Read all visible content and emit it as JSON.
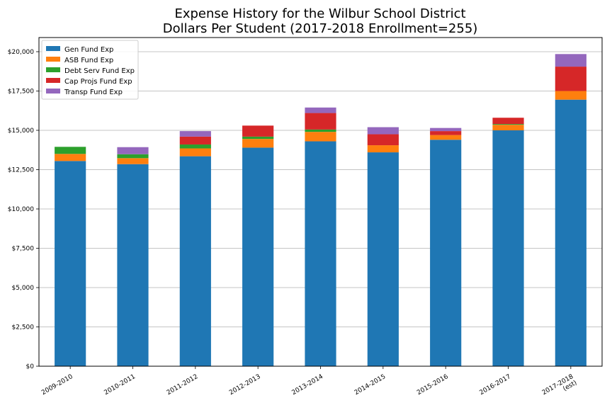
{
  "chart_data": {
    "type": "bar",
    "stacked": true,
    "title": "Expense History for the Wilbur School District",
    "subtitle": "Dollars Per Student (2017-2018 Enrollment=255)",
    "categories": [
      [
        "2009-2010"
      ],
      [
        "2010-2011"
      ],
      [
        "2011-2012"
      ],
      [
        "2012-2013"
      ],
      [
        "2013-2014"
      ],
      [
        "2014-2015"
      ],
      [
        "2015-2016"
      ],
      [
        "2016-2017"
      ],
      [
        "2017-2018",
        "(est)"
      ]
    ],
    "series": [
      {
        "name": "Gen Fund Exp",
        "color": "#1f77b4",
        "values": [
          13050,
          12850,
          13350,
          13900,
          14300,
          13600,
          14400,
          15000,
          16950
        ]
      },
      {
        "name": "ASB Fund Exp",
        "color": "#ff7f0e",
        "values": [
          450,
          380,
          500,
          550,
          600,
          450,
          300,
          350,
          550
        ]
      },
      {
        "name": "Debt Serv Fund Exp",
        "color": "#2ca02c",
        "values": [
          450,
          250,
          250,
          150,
          150,
          0,
          0,
          50,
          0
        ]
      },
      {
        "name": "Cap Projs Fund Exp",
        "color": "#d62728",
        "values": [
          0,
          0,
          500,
          700,
          1050,
          700,
          250,
          400,
          1550
        ]
      },
      {
        "name": "Transp Fund Exp",
        "color": "#9467bd",
        "values": [
          0,
          450,
          350,
          0,
          350,
          450,
          200,
          0,
          800
        ]
      }
    ],
    "y_ticks": [
      "$0",
      "$2,500",
      "$5,000",
      "$7,500",
      "$10,000",
      "$12,500",
      "$15,000",
      "$17,500",
      "$20,000"
    ],
    "y_tick_values": [
      0,
      2500,
      5000,
      7500,
      10000,
      12500,
      15000,
      17500,
      20000
    ],
    "ylim": [
      0,
      20900
    ],
    "grid": "horizontal",
    "legend_position": "top-left"
  }
}
